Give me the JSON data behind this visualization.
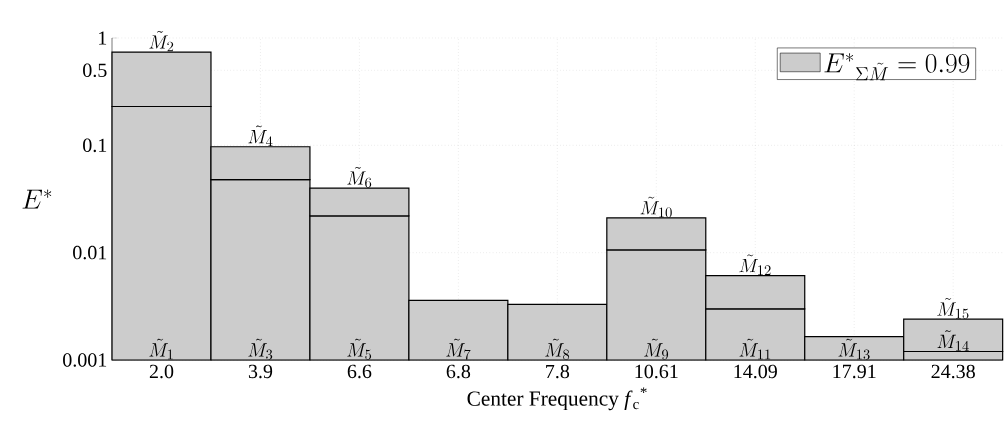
{
  "chart_data": {
    "type": "bar",
    "stacked": true,
    "log": "y",
    "xlabel": "Center Frequency *f*$_{c}$$^{*}$",
    "ylabel": "E^*",
    "categories": [
      "2.0",
      "3.9",
      "6.6",
      "6.8",
      "7.8",
      "10.61",
      "14.09",
      "17.91",
      "24.38"
    ],
    "series": [
      {
        "name": "E^*{}_{\\Sigma\\tilde{M}} = 0.99",
        "color": "#cccccc",
        "values": [
          0.23,
          0.048,
          0.022,
          0.0036,
          0.0033,
          0.0106,
          0.003,
          0.00165,
          0.0012
        ]
      },
      {
        "color": "#cccccc",
        "values": [
          0.51,
          0.049,
          0.018,
          null,
          null,
          0.0105,
          0.0031,
          null,
          0.0012
        ]
      }
    ],
    "ylim": [
      0.001,
      1
    ],
    "yticks": [
      0.001,
      0.01,
      0.1,
      0.5,
      1
    ],
    "grid": true,
    "legend": "top right",
    "annotations": [
      {
        "text": "\\tilde{M}_{1}",
        "x": "2.0",
        "y": 0.001
      },
      {
        "text": "\\tilde{M}_{2}",
        "x": "2.0",
        "y": 0.74
      },
      {
        "text": "\\tilde{M}_{3}",
        "x": "3.9",
        "y": 0.001
      },
      {
        "text": "\\tilde{M}_{4}",
        "x": "3.9",
        "y": 0.097
      },
      {
        "text": "\\tilde{M}_{5}",
        "x": "6.6",
        "y": 0.001
      },
      {
        "text": "\\tilde{M}_{6}",
        "x": "6.6",
        "y": 0.04
      },
      {
        "text": "\\tilde{M}_{7}",
        "x": "6.8",
        "y": 0.001
      },
      {
        "text": "\\tilde{M}_{8}",
        "x": "7.8",
        "y": 0.001
      },
      {
        "text": "\\tilde{M}_{9}",
        "x": "10.61",
        "y": 0.001
      },
      {
        "text": "\\tilde{M}_{10}",
        "x": "10.61",
        "y": 0.0211
      },
      {
        "text": "\\tilde{M}_{11}",
        "x": "14.09",
        "y": 0.001
      },
      {
        "text": "\\tilde{M}_{12}",
        "x": "14.09",
        "y": 0.0061
      },
      {
        "text": "\\tilde{M}_{13}",
        "x": "17.91",
        "y": 0.001
      },
      {
        "text": "\\tilde{M}_{14}",
        "x": "24.38",
        "y": 0.0012
      },
      {
        "text": "\\tilde{M}_{15}",
        "x": "24.38",
        "y": 0.0024
      }
    ]
  }
}
